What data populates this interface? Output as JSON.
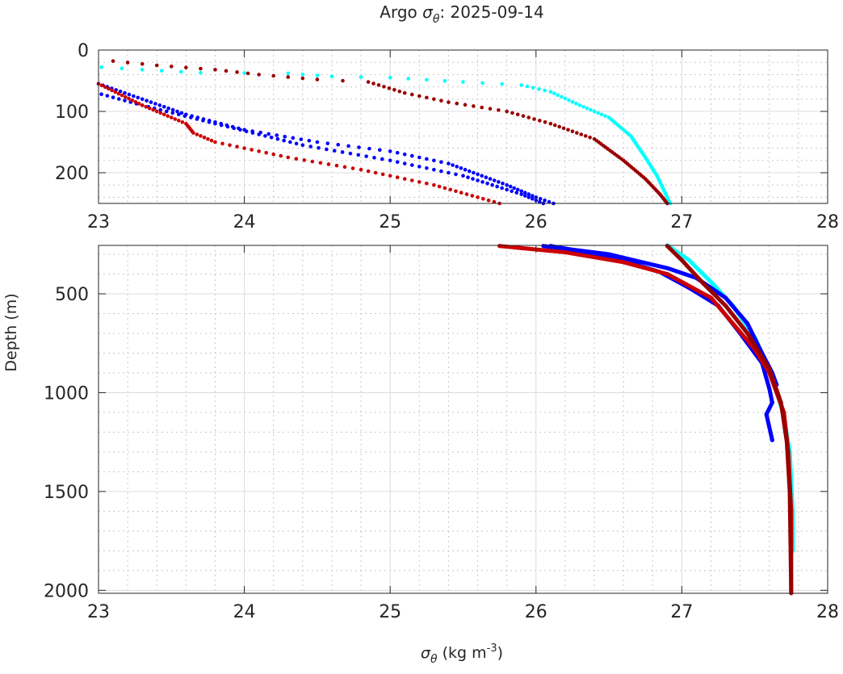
{
  "chart_data": [
    {
      "type": "scatter",
      "title_prefix": "Argo ",
      "title_symbol": "σ",
      "title_sub": "θ",
      "title_suffix": ": 2025-09-14",
      "xlim": [
        23,
        28
      ],
      "ylim": [
        0,
        250
      ],
      "y_reversed": true,
      "xticks": [
        23,
        24,
        25,
        26,
        27,
        28
      ],
      "yticks": [
        0,
        100,
        200
      ],
      "grid": true,
      "series": [
        {
          "name": "profile-cyan",
          "color": "#00ffff",
          "points": [
            [
              23.02,
              28
            ],
            [
              23.3,
              32
            ],
            [
              23.7,
              37
            ],
            [
              24.3,
              38
            ],
            [
              24.6,
              43
            ],
            [
              25,
              45
            ],
            [
              25.5,
              52
            ],
            [
              25.9,
              57
            ],
            [
              26.1,
              68
            ],
            [
              26.3,
              90
            ],
            [
              26.5,
              110
            ],
            [
              26.65,
              140
            ],
            [
              26.75,
              175
            ],
            [
              26.83,
              205
            ],
            [
              26.88,
              230
            ],
            [
              26.92,
              250
            ]
          ]
        },
        {
          "name": "profile-darkred",
          "color": "#990000",
          "points": [
            [
              23.1,
              18
            ],
            [
              23.4,
              25
            ],
            [
              23.8,
              32
            ],
            [
              24.1,
              40
            ],
            [
              24.5,
              48
            ],
            [
              24.85,
              52
            ],
            [
              25.1,
              70
            ],
            [
              25.4,
              85
            ],
            [
              25.8,
              100
            ],
            [
              26.1,
              120
            ],
            [
              26.4,
              145
            ],
            [
              26.6,
              180
            ],
            [
              26.75,
              210
            ],
            [
              26.85,
              235
            ],
            [
              26.9,
              250
            ]
          ]
        },
        {
          "name": "profile-blue-1",
          "color": "#0000ff",
          "points": [
            [
              23.0,
              55
            ],
            [
              23.3,
              80
            ],
            [
              23.6,
              105
            ],
            [
              24.0,
              130
            ],
            [
              24.5,
              150
            ],
            [
              25.0,
              165
            ],
            [
              25.4,
              185
            ],
            [
              25.8,
              220
            ],
            [
              26.0,
              240
            ],
            [
              26.12,
              250
            ]
          ]
        },
        {
          "name": "profile-blue-2",
          "color": "#0000ff",
          "points": [
            [
              23.02,
              72
            ],
            [
              23.3,
              90
            ],
            [
              23.8,
              120
            ],
            [
              24.4,
              155
            ],
            [
              25.0,
              180
            ],
            [
              25.5,
              205
            ],
            [
              25.9,
              235
            ],
            [
              26.05,
              250
            ]
          ]
        },
        {
          "name": "profile-red",
          "color": "#cc0000",
          "points": [
            [
              23.0,
              55
            ],
            [
              23.3,
              90
            ],
            [
              23.6,
              120
            ],
            [
              23.65,
              135
            ],
            [
              23.8,
              150
            ],
            [
              24.3,
              175
            ],
            [
              24.8,
              195
            ],
            [
              25.3,
              220
            ],
            [
              25.6,
              240
            ],
            [
              25.75,
              250
            ]
          ]
        }
      ]
    },
    {
      "type": "scatter",
      "xlabel_symbol": "σ",
      "xlabel_sub": "θ",
      "xlabel_rest": " (kg m",
      "xlabel_sup": "-3",
      "xlabel_end": ")",
      "ylabel": "Depth (m)",
      "xlim": [
        23,
        28
      ],
      "ylim": [
        255,
        2015
      ],
      "y_reversed": true,
      "xticks": [
        23,
        24,
        25,
        26,
        27,
        28
      ],
      "yticks": [
        500,
        1000,
        1500,
        2000
      ],
      "grid": true,
      "series": [
        {
          "name": "profile-cyan",
          "color": "#00ffff",
          "points": [
            [
              26.9,
              255
            ],
            [
              27.05,
              330
            ],
            [
              27.2,
              440
            ],
            [
              27.35,
              560
            ],
            [
              27.5,
              720
            ],
            [
              27.62,
              920
            ],
            [
              27.7,
              1120
            ],
            [
              27.74,
              1300
            ],
            [
              27.76,
              1600
            ],
            [
              27.76,
              1800
            ]
          ]
        },
        {
          "name": "profile-blue-1",
          "color": "#0000ff",
          "points": [
            [
              26.05,
              258
            ],
            [
              26.5,
              300
            ],
            [
              26.9,
              370
            ],
            [
              27.1,
              420
            ],
            [
              27.3,
              520
            ],
            [
              27.45,
              650
            ],
            [
              27.55,
              800
            ],
            [
              27.62,
              900
            ],
            [
              27.65,
              960
            ]
          ]
        },
        {
          "name": "profile-blue-2",
          "color": "#0000ff",
          "points": [
            [
              26.1,
              258
            ],
            [
              26.5,
              310
            ],
            [
              26.85,
              390
            ],
            [
              27.05,
              470
            ],
            [
              27.25,
              560
            ],
            [
              27.4,
              700
            ],
            [
              27.55,
              850
            ],
            [
              27.6,
              980
            ],
            [
              27.62,
              1050
            ],
            [
              27.58,
              1110
            ],
            [
              27.62,
              1240
            ]
          ]
        },
        {
          "name": "profile-red",
          "color": "#cc0000",
          "points": [
            [
              25.75,
              258
            ],
            [
              26.2,
              290
            ],
            [
              26.6,
              340
            ],
            [
              26.9,
              400
            ],
            [
              27.2,
              520
            ],
            [
              27.35,
              650
            ],
            [
              27.5,
              780
            ],
            [
              27.6,
              900
            ],
            [
              27.7,
              1100
            ],
            [
              27.73,
              1300
            ],
            [
              27.75,
              1600
            ],
            [
              27.75,
              2015
            ]
          ]
        },
        {
          "name": "profile-darkred",
          "color": "#990000",
          "points": [
            [
              26.9,
              258
            ],
            [
              27.0,
              330
            ],
            [
              27.15,
              450
            ],
            [
              27.3,
              560
            ],
            [
              27.45,
              700
            ],
            [
              27.6,
              880
            ],
            [
              27.68,
              1050
            ],
            [
              27.72,
              1250
            ],
            [
              27.74,
              1500
            ],
            [
              27.75,
              2010
            ]
          ]
        }
      ]
    }
  ]
}
